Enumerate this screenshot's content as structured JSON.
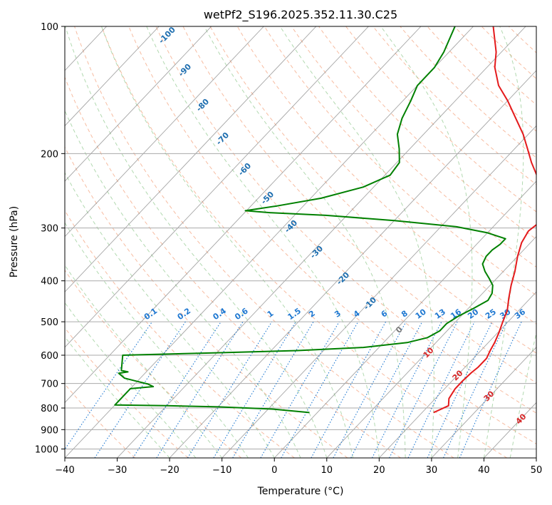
{
  "chart_data": {
    "type": "line",
    "title": "wetPf2_S196.2025.352.11.30.C25",
    "xlabel": "Temperature (°C)",
    "ylabel": "Pressure (hPa)",
    "xlim": [
      -40,
      50
    ],
    "ylim": [
      1050,
      100
    ],
    "y_scale": "log",
    "skew": "skew-T log-p",
    "grid": true,
    "x_ticks": [
      -40,
      -30,
      -20,
      -10,
      0,
      10,
      20,
      30,
      40,
      50
    ],
    "y_ticks": [
      1000,
      900,
      800,
      700,
      600,
      500,
      400,
      300,
      200,
      100
    ],
    "series": [
      {
        "color": "#e41a1c",
        "points": [
          {
            "p": 820,
            "t": 22.2
          },
          {
            "p": 790,
            "t": 23.8
          },
          {
            "p": 760,
            "t": 22.6
          },
          {
            "p": 720,
            "t": 22.0
          },
          {
            "p": 690,
            "t": 22.0
          },
          {
            "p": 660,
            "t": 22.2
          },
          {
            "p": 640,
            "t": 22.5
          },
          {
            "p": 610,
            "t": 22.5
          },
          {
            "p": 585,
            "t": 21.8
          },
          {
            "p": 560,
            "t": 21.2
          },
          {
            "p": 530,
            "t": 20.2
          },
          {
            "p": 500,
            "t": 19.0
          },
          {
            "p": 470,
            "t": 17.8
          },
          {
            "p": 440,
            "t": 15.9
          },
          {
            "p": 410,
            "t": 14.0
          },
          {
            "p": 380,
            "t": 12.2
          },
          {
            "p": 350,
            "t": 10.0
          },
          {
            "p": 325,
            "t": 8.3
          },
          {
            "p": 305,
            "t": 7.5
          },
          {
            "p": 292,
            "t": 8.0
          },
          {
            "p": 280,
            "t": 8.4
          },
          {
            "p": 268,
            "t": 6.8
          },
          {
            "p": 255,
            "t": 4.5
          },
          {
            "p": 240,
            "t": 1.8
          },
          {
            "p": 225,
            "t": -1.0
          },
          {
            "p": 210,
            "t": -4.3
          },
          {
            "p": 195,
            "t": -7.5
          },
          {
            "p": 180,
            "t": -11.0
          },
          {
            "p": 165,
            "t": -15.3
          },
          {
            "p": 150,
            "t": -20.0
          },
          {
            "p": 138,
            "t": -24.5
          },
          {
            "p": 125,
            "t": -28.5
          },
          {
            "p": 115,
            "t": -31.0
          },
          {
            "p": 100,
            "t": -36.2
          }
        ]
      },
      {
        "color": "#008000",
        "points": [
          {
            "p": 820,
            "t": -1.5
          },
          {
            "p": 805,
            "t": -9.0
          },
          {
            "p": 795,
            "t": -20.0
          },
          {
            "p": 790,
            "t": -30.0
          },
          {
            "p": 787,
            "t": -40.0
          },
          {
            "p": 720,
            "t": -40.0
          },
          {
            "p": 712,
            "t": -36.0
          },
          {
            "p": 702,
            "t": -37.5
          },
          {
            "p": 692,
            "t": -40.0
          },
          {
            "p": 680,
            "t": -43.0
          },
          {
            "p": 662,
            "t": -45.0
          },
          {
            "p": 657,
            "t": -43.5
          },
          {
            "p": 652,
            "t": -45.0
          },
          {
            "p": 600,
            "t": -47.5
          },
          {
            "p": 592,
            "t": -30.0
          },
          {
            "p": 585,
            "t": -15.0
          },
          {
            "p": 575,
            "t": -3.0
          },
          {
            "p": 560,
            "t": 4.5
          },
          {
            "p": 545,
            "t": 7.5
          },
          {
            "p": 525,
            "t": 8.6
          },
          {
            "p": 505,
            "t": 8.6
          },
          {
            "p": 485,
            "t": 9.5
          },
          {
            "p": 465,
            "t": 11.0
          },
          {
            "p": 445,
            "t": 12.3
          },
          {
            "p": 428,
            "t": 11.8
          },
          {
            "p": 410,
            "t": 10.5
          },
          {
            "p": 395,
            "t": 8.6
          },
          {
            "p": 380,
            "t": 6.5
          },
          {
            "p": 365,
            "t": 4.7
          },
          {
            "p": 350,
            "t": 4.0
          },
          {
            "p": 338,
            "t": 4.0
          },
          {
            "p": 328,
            "t": 4.5
          },
          {
            "p": 318,
            "t": 4.5
          },
          {
            "p": 308,
            "t": 0.0
          },
          {
            "p": 298,
            "t": -7.0
          },
          {
            "p": 288,
            "t": -20.0
          },
          {
            "p": 280,
            "t": -34.0
          },
          {
            "p": 276,
            "t": -45.0
          },
          {
            "p": 273,
            "t": -50.2
          },
          {
            "p": 266,
            "t": -45.0
          },
          {
            "p": 255,
            "t": -38.0
          },
          {
            "p": 240,
            "t": -32.0
          },
          {
            "p": 225,
            "t": -29.0
          },
          {
            "p": 210,
            "t": -29.5
          },
          {
            "p": 195,
            "t": -32.0
          },
          {
            "p": 180,
            "t": -35.0
          },
          {
            "p": 165,
            "t": -37.0
          },
          {
            "p": 150,
            "t": -38.5
          },
          {
            "p": 138,
            "t": -40.0
          },
          {
            "p": 125,
            "t": -40.0
          },
          {
            "p": 115,
            "t": -41.0
          },
          {
            "p": 100,
            "t": -43.5
          }
        ]
      }
    ],
    "dry_adiabat_labels": [
      "-100",
      "-90",
      "-80",
      "-70",
      "-60",
      "-50",
      "-40",
      "-30",
      "-20",
      "-10"
    ],
    "moist_adiabat_labels": [
      "0",
      "10",
      "20",
      "30",
      "40"
    ],
    "mixing_ratio_labels": [
      "0.1",
      "0.2",
      "0.4",
      "0.6",
      "1",
      "1.5",
      "2",
      "3",
      "4",
      "6",
      "8",
      "10",
      "13",
      "16",
      "20",
      "25",
      "30",
      "36"
    ],
    "colors": {
      "temperature": "#e41a1c",
      "dewpoint": "#008000",
      "isotherm": "#888888",
      "dry_adiabat": "#f4a582",
      "moist_adiabat": "#7fbf7b",
      "mixing_ratio": "#1f78d1",
      "dry_adiabat_label": "#1f6fb0",
      "moist_adiabat_label": "#d62728",
      "zero_label": "#777777"
    }
  }
}
